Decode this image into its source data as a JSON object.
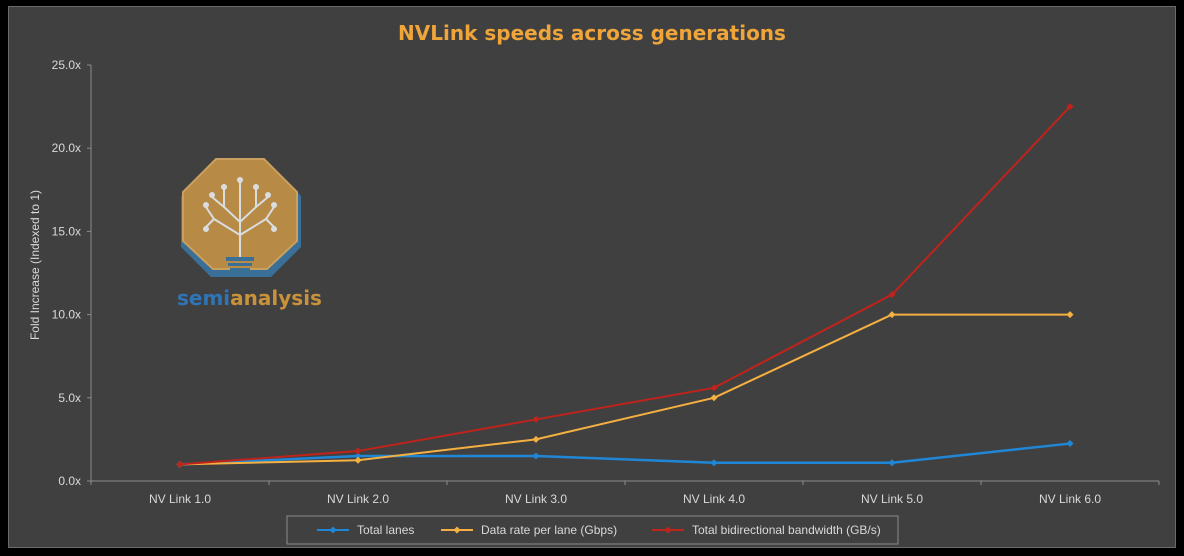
{
  "chart_data": {
    "type": "line",
    "title": "NVLink speeds across generations",
    "xlabel": "",
    "ylabel": "Fold Increase (Indexed to 1)",
    "categories": [
      "NV Link 1.0",
      "NV Link 2.0",
      "NV Link 3.0",
      "NV Link 4.0",
      "NV Link 5.0",
      "NV Link 6.0"
    ],
    "ylim": [
      0,
      25
    ],
    "yticks": [
      "0.0x",
      "5.0x",
      "10.0x",
      "15.0x",
      "20.0x",
      "25.0x"
    ],
    "grid": false,
    "legend_position": "bottom",
    "series": [
      {
        "name": "Total lanes",
        "color": "#1f87d6",
        "values": [
          1.0,
          1.5,
          1.5,
          1.1,
          1.1,
          2.25
        ]
      },
      {
        "name": "Data rate per lane (Gbps)",
        "color": "#f5b041",
        "values": [
          1.0,
          1.25,
          2.5,
          5.0,
          10.0,
          10.0
        ]
      },
      {
        "name": "Total bidirectional bandwidth (GB/s)",
        "color": "#c0231b",
        "values": [
          1.0,
          1.8,
          3.7,
          5.6,
          11.2,
          22.5
        ]
      }
    ]
  },
  "watermark": {
    "text_semi": "semi",
    "text_analysis": "analysis",
    "icon": "tree-circuit-logo"
  }
}
